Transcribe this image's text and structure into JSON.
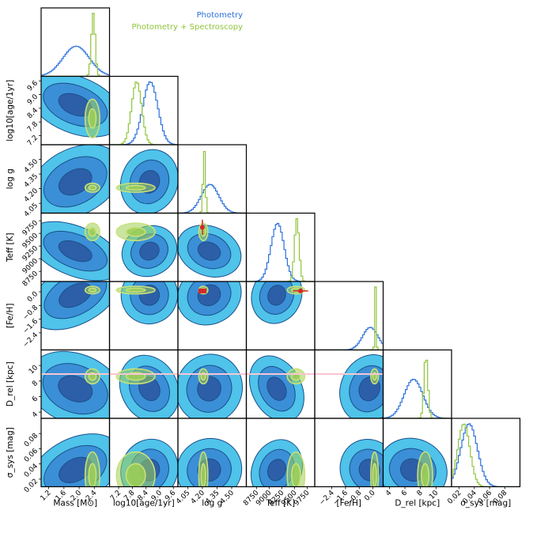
{
  "chart_data": {
    "type": "corner",
    "legend": [
      {
        "label": "Photometry",
        "color": "#2a6fdb"
      },
      {
        "label": "Photometry + Spectroscopy",
        "color": "#8fc43a"
      }
    ],
    "colors": {
      "photo_line": "#2a6fdb",
      "spec_line": "#8fc43a",
      "fill_outer": "#4fc3ea",
      "fill_mid": "#3b8fd6",
      "fill_inner": "#2d5fa8",
      "edge": "#1a4f8a",
      "spec_fill": "#9fcf55",
      "spec_edge": "#c8e07a",
      "ref_line": "#f7c6d3",
      "ref_marker": "#d62728"
    },
    "parameters": [
      {
        "key": "mass",
        "label": "Mass [M⊙]",
        "range": [
          1.0,
          2.8
        ],
        "ticks": [
          "1.2",
          "1.6",
          "2.0",
          "2.4"
        ],
        "tick_values": [
          1.2,
          1.6,
          2.0,
          2.4
        ],
        "photo": {
          "mean": 1.9,
          "sd": 0.35
        },
        "spec": {
          "mean": 2.35,
          "sd": 0.05
        }
      },
      {
        "key": "age",
        "label": "log10[age/1yr]",
        "range": [
          6.8,
          9.8
        ],
        "ticks": [
          "7.2",
          "7.8",
          "8.4",
          "9.0",
          "9.6"
        ],
        "tick_values": [
          7.2,
          7.8,
          8.4,
          9.0,
          9.6
        ],
        "photo": {
          "mean": 8.55,
          "sd": 0.33
        },
        "spec": {
          "mean": 7.95,
          "sd": 0.22
        }
      },
      {
        "key": "logg",
        "label": "log g",
        "range": [
          3.95,
          4.65
        ],
        "ticks": [
          "4.05",
          "4.20",
          "4.35",
          "4.50"
        ],
        "tick_values": [
          4.05,
          4.2,
          4.35,
          4.5
        ],
        "photo": {
          "mean": 4.27,
          "sd": 0.09
        },
        "spec": {
          "mean": 4.21,
          "sd": 0.012
        }
      },
      {
        "key": "teff",
        "label": "Teff [K]",
        "range": [
          8550,
          9900
        ],
        "ticks": [
          "8750",
          "9000",
          "9250",
          "9500",
          "9750"
        ],
        "tick_values": [
          8750,
          9000,
          9250,
          9500,
          9750
        ],
        "photo": {
          "mean": 9150,
          "sd": 130
        },
        "spec": {
          "mean": 9530,
          "sd": 45
        }
      },
      {
        "key": "feh",
        "label": "[Fe/H]",
        "range": [
          -3.4,
          0.6
        ],
        "ticks": [
          "−2.4",
          "−1.6",
          "−0.8",
          "0.0"
        ],
        "tick_values": [
          -2.4,
          -1.6,
          -0.8,
          0.0
        ],
        "photo": {
          "mean": -0.2,
          "sd": 0.45
        },
        "spec": {
          "mean": 0.1,
          "sd": 0.04
        }
      },
      {
        "key": "dist",
        "label": "D_rel [kpc]",
        "range": [
          3.2,
          12.0
        ],
        "ticks": [
          "4",
          "6",
          "8",
          "10"
        ],
        "tick_values": [
          4,
          6,
          8,
          10
        ],
        "photo": {
          "mean": 7.0,
          "sd": 1.2
        },
        "spec": {
          "mean": 8.6,
          "sd": 0.25
        }
      },
      {
        "key": "sigma",
        "label": "σ_sys [mag]",
        "range": [
          0.01,
          0.1
        ],
        "ticks": [
          "0.02",
          "0.04",
          "0.06",
          "0.08"
        ],
        "tick_values": [
          0.02,
          0.04,
          0.06,
          0.08
        ],
        "photo": {
          "mean": 0.032,
          "sd": 0.011
        },
        "spec": {
          "mean": 0.025,
          "sd": 0.008
        }
      }
    ],
    "reference": {
      "logg": {
        "value": 4.2,
        "err": 0.03
      },
      "teff": {
        "value": 9620,
        "err": 150
      },
      "feh": {
        "value": 0.05,
        "err": 0.12
      },
      "dist": {
        "value": 8.9
      }
    }
  }
}
